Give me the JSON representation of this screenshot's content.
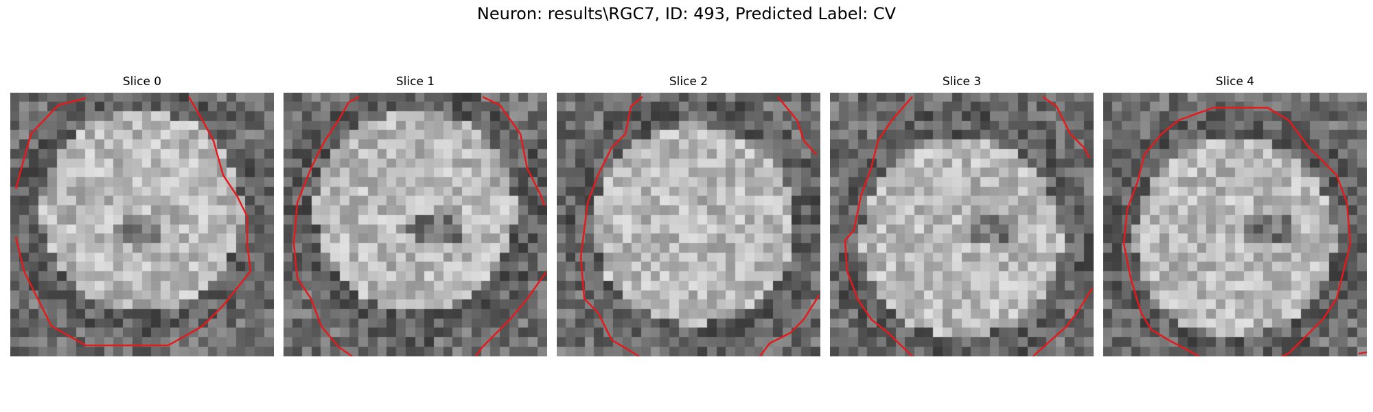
{
  "figure": {
    "title": "Neuron: results\\RGC7, ID: 493, Predicted Label: CV",
    "slices": [
      {
        "label": "Slice 0",
        "seed": 11,
        "dark_spot": [
          0.48,
          0.53
        ],
        "bright_center": [
          0.5,
          0.45
        ]
      },
      {
        "label": "Slice 1",
        "seed": 23,
        "dark_spot": [
          0.58,
          0.52
        ],
        "bright_center": [
          0.5,
          0.45
        ]
      },
      {
        "label": "Slice 2",
        "seed": 37,
        "dark_spot": null,
        "bright_center": [
          0.52,
          0.5
        ]
      },
      {
        "label": "Slice 3",
        "seed": 41,
        "dark_spot": [
          0.62,
          0.52
        ],
        "bright_center": [
          0.5,
          0.55
        ]
      },
      {
        "label": "Slice 4",
        "seed": 53,
        "dark_spot": [
          0.62,
          0.52
        ],
        "bright_center": [
          0.5,
          0.55
        ]
      }
    ],
    "contour_color": "#e41a1c"
  }
}
